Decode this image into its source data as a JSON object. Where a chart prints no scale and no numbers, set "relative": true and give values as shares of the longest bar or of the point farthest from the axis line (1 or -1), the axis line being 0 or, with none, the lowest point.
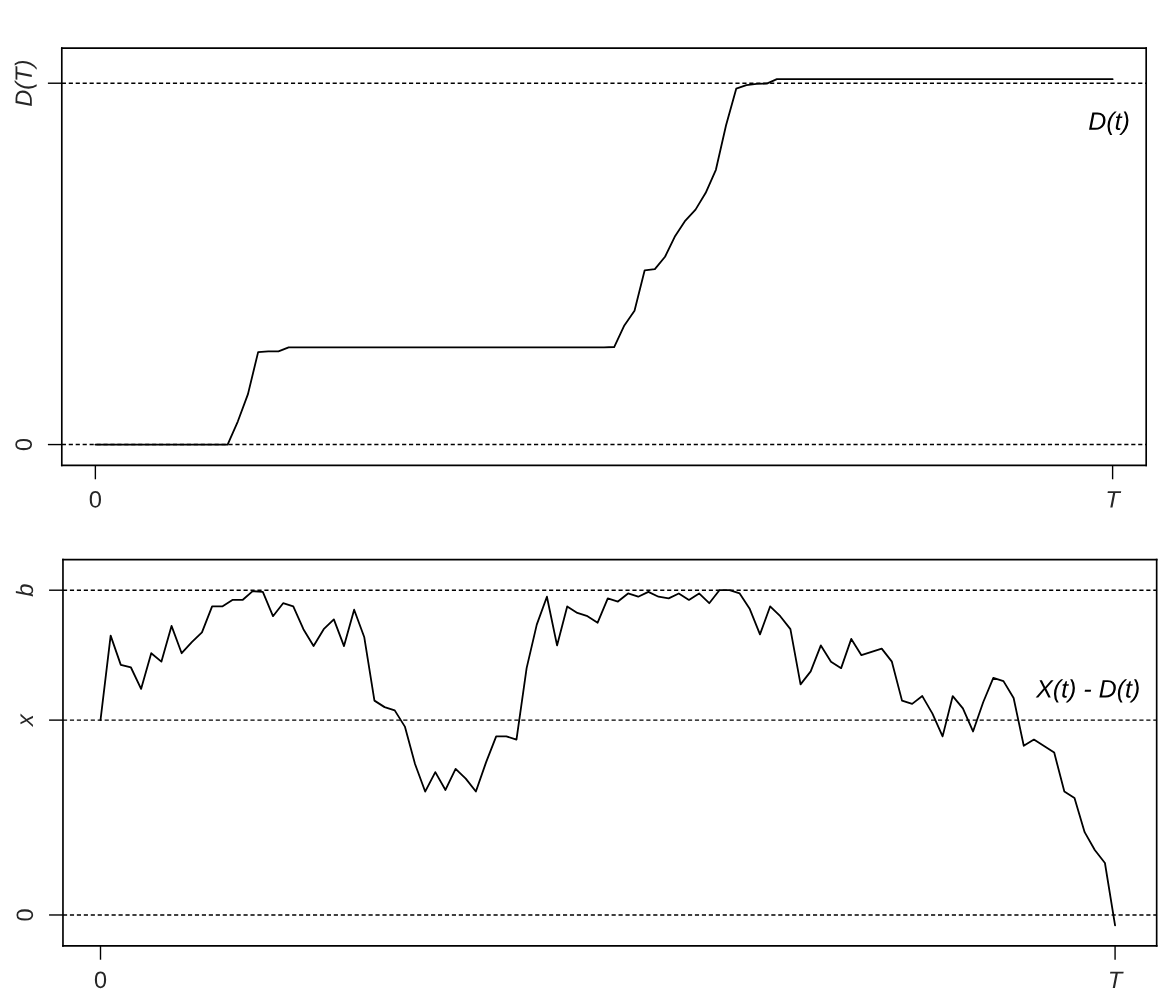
{
  "chart_data": [
    {
      "type": "line",
      "relative": true,
      "categories": [
        "0",
        null,
        null,
        null,
        null,
        null,
        null,
        null,
        null,
        null,
        null,
        null,
        null,
        null,
        null,
        null,
        null,
        null,
        null,
        null,
        null,
        null,
        null,
        null,
        null,
        null,
        null,
        null,
        null,
        null,
        null,
        null,
        null,
        null,
        null,
        null,
        null,
        null,
        null,
        null,
        null,
        null,
        null,
        null,
        null,
        null,
        null,
        null,
        null,
        null,
        null,
        null,
        null,
        null,
        null,
        null,
        null,
        null,
        null,
        null,
        null,
        null,
        null,
        null,
        null,
        null,
        null,
        null,
        null,
        null,
        null,
        null,
        null,
        null,
        null,
        null,
        null,
        null,
        null,
        null,
        null,
        null,
        null,
        null,
        null,
        null,
        null,
        null,
        null,
        null,
        null,
        null,
        null,
        null,
        null,
        null,
        null,
        null,
        null,
        null,
        "T"
      ],
      "grid": false,
      "legend": false,
      "marker": "none",
      "line_style": "solid",
      "ref_lines": [
        {
          "axis": "y",
          "value": 0,
          "label": "0",
          "line_style": "dashed",
          "color": "#000000"
        },
        {
          "axis": "y",
          "value": 0.989,
          "label": "D(T)",
          "line_style": "dashed",
          "color": "#000000"
        }
      ],
      "series": [
        {
          "name": "D(t)",
          "color": "#000000",
          "values": [
            0,
            0,
            0,
            0,
            0,
            0,
            0,
            0,
            0,
            0,
            0,
            0,
            0,
            0,
            0.063,
            0.138,
            0.253,
            0.255,
            0.255,
            0.266,
            0.266,
            0.266,
            0.266,
            0.266,
            0.266,
            0.266,
            0.266,
            0.266,
            0.266,
            0.266,
            0.266,
            0.266,
            0.266,
            0.266,
            0.266,
            0.266,
            0.266,
            0.266,
            0.266,
            0.266,
            0.266,
            0.266,
            0.266,
            0.266,
            0.266,
            0.266,
            0.266,
            0.266,
            0.266,
            0.266,
            0.266,
            0.267,
            0.326,
            0.366,
            0.477,
            0.48,
            0.514,
            0.571,
            0.613,
            0.643,
            0.689,
            0.752,
            0.874,
            0.974,
            0.984,
            0.987,
            0.988,
            1,
            1,
            1,
            1,
            1,
            1,
            1,
            1,
            1,
            1,
            1,
            1,
            1,
            1,
            1,
            1,
            1,
            1,
            1,
            1,
            1,
            1,
            1,
            1,
            1,
            1,
            1,
            1,
            1,
            1,
            1,
            1,
            1,
            1
          ]
        }
      ]
    },
    {
      "type": "line",
      "relative": true,
      "categories": [
        "0",
        null,
        null,
        null,
        null,
        null,
        null,
        null,
        null,
        null,
        null,
        null,
        null,
        null,
        null,
        null,
        null,
        null,
        null,
        null,
        null,
        null,
        null,
        null,
        null,
        null,
        null,
        null,
        null,
        null,
        null,
        null,
        null,
        null,
        null,
        null,
        null,
        null,
        null,
        null,
        null,
        null,
        null,
        null,
        null,
        null,
        null,
        null,
        null,
        null,
        null,
        null,
        null,
        null,
        null,
        null,
        null,
        null,
        null,
        null,
        null,
        null,
        null,
        null,
        null,
        null,
        null,
        null,
        null,
        null,
        null,
        null,
        null,
        null,
        null,
        null,
        null,
        null,
        null,
        null,
        null,
        null,
        null,
        null,
        null,
        null,
        null,
        null,
        null,
        null,
        null,
        null,
        null,
        null,
        null,
        null,
        null,
        null,
        null,
        null,
        "T"
      ],
      "grid": false,
      "legend": false,
      "marker": "none",
      "line_style": "solid",
      "ref_lines": [
        {
          "axis": "y",
          "value": 0,
          "label": "0",
          "line_style": "dashed",
          "color": "#000000"
        },
        {
          "axis": "y",
          "value": 0.6,
          "label": "x",
          "line_style": "dashed",
          "color": "#000000"
        },
        {
          "axis": "y",
          "value": 1,
          "label": "b",
          "line_style": "dashed",
          "color": "#000000"
        }
      ],
      "series": [
        {
          "name": "X(t) - D(t)",
          "color": "#000000",
          "values": [
            0.6,
            0.86,
            0.77,
            0.762,
            0.696,
            0.806,
            0.78,
            0.89,
            0.806,
            0.84,
            0.87,
            0.95,
            0.95,
            0.97,
            0.97,
            0.997,
            0.995,
            0.92,
            0.96,
            0.95,
            0.88,
            0.828,
            0.88,
            0.91,
            0.828,
            0.94,
            0.855,
            0.66,
            0.64,
            0.63,
            0.58,
            0.465,
            0.38,
            0.44,
            0.385,
            0.45,
            0.42,
            0.38,
            0.47,
            0.55,
            0.55,
            0.54,
            0.76,
            0.894,
            0.98,
            0.83,
            0.95,
            0.93,
            0.92,
            0.9,
            0.975,
            0.965,
            0.99,
            0.98,
            0.995,
            0.98,
            0.975,
            0.99,
            0.97,
            0.99,
            0.96,
            1,
            1,
            0.99,
            0.942,
            0.864,
            0.95,
            0.92,
            0.88,
            0.71,
            0.75,
            0.83,
            0.78,
            0.76,
            0.85,
            0.8,
            0.81,
            0.82,
            0.78,
            0.66,
            0.65,
            0.674,
            0.62,
            0.55,
            0.674,
            0.636,
            0.565,
            0.655,
            0.73,
            0.72,
            0.668,
            0.521,
            0.54,
            0.52,
            0.5,
            0.38,
            0.36,
            0.255,
            0.2,
            0.16,
            -0.032
          ]
        }
      ]
    }
  ]
}
